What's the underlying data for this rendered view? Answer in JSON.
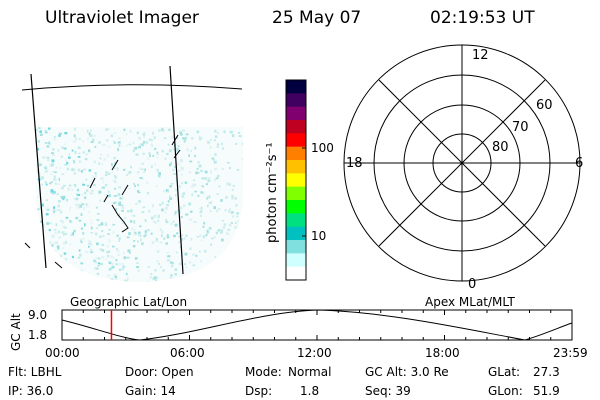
{
  "header": {
    "instrument": "Ultraviolet Imager",
    "date": "25 May 07",
    "time": "02:19:53 UT"
  },
  "colorbar": {
    "unit_label": "photon cm⁻²s⁻¹",
    "ticks": [
      "100",
      "10"
    ],
    "colors": [
      "#000040",
      "#400060",
      "#800070",
      "#c00020",
      "#ff0000",
      "#ff8000",
      "#ffc000",
      "#ffff00",
      "#80ff00",
      "#00ff00",
      "#00e080",
      "#00c0c0",
      "#80e0e0",
      "#d0ffff",
      "#ffffff"
    ]
  },
  "polar": {
    "mlt_labels": {
      "top": "12",
      "left": "18",
      "right": "6",
      "bottom": "0"
    },
    "lat_labels": [
      "60",
      "70",
      "80"
    ]
  },
  "altitude_plot": {
    "ylabel": "GC Alt",
    "yticks": [
      "9.0",
      "1.8"
    ],
    "left_title": "Geographic Lat/Lon",
    "right_title": "Apex MLat/MLT",
    "xticks": [
      "00:00",
      "06:00",
      "12:00",
      "18:00",
      "23:59"
    ],
    "current_time_fraction": 0.097,
    "marker_color": "#ff0000"
  },
  "info": {
    "flt": "Flt: LBHL",
    "ip": "IP: 36.0",
    "door": "Door: Open",
    "gain": "Gain: 14",
    "mode_label": "Mode:",
    "mode_value": "Normal",
    "dsp_label": "Dsp:",
    "dsp_value": "1.8",
    "gcalt": "GC Alt: 3.0 Re",
    "seq": "Seq: 39",
    "glat_label": "GLat:",
    "glat_value": "27.3",
    "glon_label": "GLon:",
    "glon_value": "51.9"
  }
}
